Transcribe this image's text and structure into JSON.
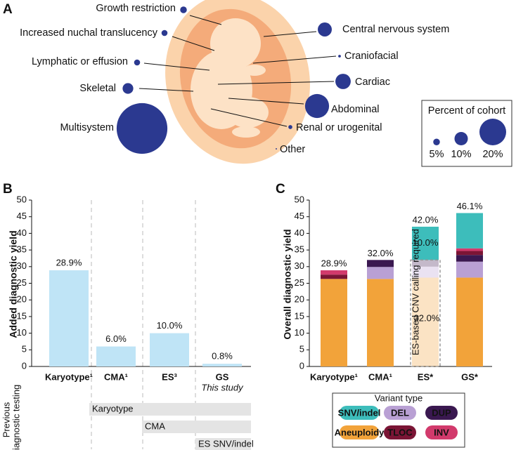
{
  "chart_data": [
    {
      "type": "bubble",
      "panel_label": "A",
      "categories": [
        "Growth restriction",
        "Increased nuchal translucency",
        "Lymphatic or effusion",
        "Skeletal",
        "Multisystem",
        "Central nervous system",
        "Craniofacial",
        "Cardiac",
        "Abdominal",
        "Renal or urogenital",
        "Other"
      ],
      "values": [
        5,
        4.5,
        4.5,
        8,
        38,
        10.5,
        2,
        11.5,
        18,
        3,
        1
      ],
      "color": "#2b3990",
      "size_legend": {
        "title": "Percent of cohort",
        "sizes": [
          {
            "value": 5,
            "label": "5%"
          },
          {
            "value": 10,
            "label": "10%"
          },
          {
            "value": 20,
            "label": "20%"
          }
        ]
      }
    },
    {
      "type": "bar",
      "panel_label": "B",
      "ylabel": "Added diagnostic yield",
      "categories": [
        "Karyotype¹",
        "CMA¹",
        "ES³",
        "GS"
      ],
      "category_notes": [
        null,
        null,
        null,
        "This study"
      ],
      "values": [
        28.9,
        6.0,
        10.0,
        0.8
      ],
      "value_labels": [
        "28.9%",
        "6.0%",
        "10.0%",
        "0.8%"
      ],
      "color": "#bfe4f6",
      "ylim": [
        0,
        50
      ],
      "yticks": [
        0,
        5,
        10,
        15,
        20,
        25,
        30,
        35,
        40,
        45,
        50
      ],
      "previous_testing": {
        "title_lines": [
          "Previous",
          "diagnostic testing"
        ],
        "items": [
          "Karyotype",
          "CMA",
          "ES SNV/indel"
        ]
      }
    },
    {
      "type": "stacked_bar",
      "panel_label": "C",
      "ylabel": "Overall diagnostic yield",
      "categories": [
        "Karyotype¹",
        "CMA¹",
        "ES*",
        "GS*"
      ],
      "series": [
        {
          "name": "SNV/indel",
          "color": "#3dbdbb",
          "values": [
            0,
            0,
            10.0,
            10.6
          ]
        },
        {
          "name": "DEL",
          "color": "#b9a0d4",
          "values": [
            0,
            3.6,
            3.3,
            4.8
          ]
        },
        {
          "name": "DUP",
          "color": "#3a1850",
          "values": [
            0,
            2.1,
            2.0,
            2.0
          ]
        },
        {
          "name": "Aneuploidy",
          "color": "#f2a33a",
          "values": [
            26.3,
            26.3,
            26.7,
            26.7
          ]
        },
        {
          "name": "TLOC",
          "color": "#7b1535",
          "values": [
            1.3,
            0,
            0,
            1.2
          ]
        },
        {
          "name": "INV",
          "color": "#d23a6c",
          "values": [
            1.3,
            0,
            0,
            0.8
          ]
        }
      ],
      "totals": [
        28.9,
        32.0,
        42.0,
        46.1
      ],
      "total_labels": [
        "28.9%",
        "32.0%",
        "42.0%",
        "46.1%"
      ],
      "ylim": [
        0,
        50
      ],
      "yticks": [
        0,
        5,
        10,
        15,
        20,
        25,
        30,
        35,
        40,
        45,
        50
      ],
      "legend": {
        "title": "Variant type"
      },
      "dashed_box": {
        "category": "ES*",
        "top": 32.0,
        "label": "ES-based CNV calling required",
        "value_label": "32.0%"
      },
      "segment_labels": [
        {
          "series": "SNV/indel",
          "category": "ES*",
          "label": "10.0%"
        }
      ]
    }
  ]
}
